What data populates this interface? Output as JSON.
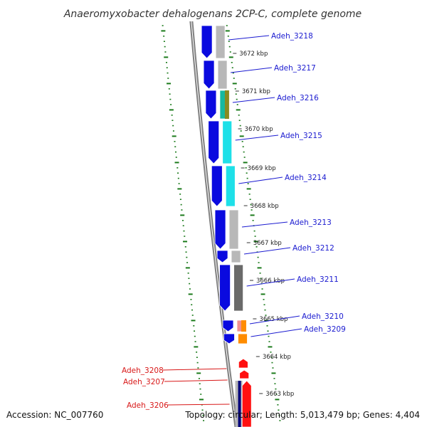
{
  "title": "Anaeromyxobacter dehalogenans 2CP-C, complete genome",
  "footer": {
    "accession": "Accession: NC_007760",
    "summary": "Topology: circular; Length: 5,013,479 bp; Genes: 4,404"
  },
  "colors": {
    "forward_cds": "#0a0adf",
    "reverse_cds": "#ff1010",
    "forward_label": "#1a1ad0",
    "reverse_label": "#d81818",
    "backbone": "#808080",
    "gc_dots": "#1a7a1a",
    "no_cog": "#b8b8b8",
    "cog_cyan": "#1ee0e8",
    "cog_olive": "#8a8a20",
    "cog_teal": "#16b8a0",
    "cog_darkgray": "#6a6a6a",
    "cog_salmon": "#f09090",
    "cog_orange": "#ff8c00",
    "cog_navy": "#00007a"
  },
  "ticks": [
    "3672 kbp",
    "3671 kbp",
    "3670 kbp",
    "3669 kbp",
    "3668 kbp",
    "3667 kbp",
    "3666 kbp",
    "3665 kbp",
    "3664 kbp",
    "3663 kbp"
  ],
  "genes": [
    {
      "name": "Adeh_3218",
      "strand": "+",
      "cog_color": "#b8b8b8"
    },
    {
      "name": "Adeh_3217",
      "strand": "+",
      "cog_color": "#b8b8b8"
    },
    {
      "name": "Adeh_3216",
      "strand": "+",
      "cog_color": "#16b8a0"
    },
    {
      "name": "Adeh_3215",
      "strand": "+",
      "cog_color": "#1ee0e8"
    },
    {
      "name": "Adeh_3214",
      "strand": "+",
      "cog_color": "#1ee0e8"
    },
    {
      "name": "Adeh_3213",
      "strand": "+",
      "cog_color": "#b8b8b8"
    },
    {
      "name": "Adeh_3212",
      "strand": "+",
      "cog_color": "#b8b8b8"
    },
    {
      "name": "Adeh_3211",
      "strand": "+",
      "cog_color": "#6a6a6a"
    },
    {
      "name": "Adeh_3210",
      "strand": "+",
      "cog_color": "#f09090"
    },
    {
      "name": "Adeh_3209",
      "strand": "+",
      "cog_color": "#ff8c00"
    },
    {
      "name": "Adeh_3208",
      "strand": "-",
      "cog_color": "#b8b8b8"
    },
    {
      "name": "Adeh_3207",
      "strand": "-",
      "cog_color": "#b8b8b8"
    },
    {
      "name": "Adeh_3206",
      "strand": "-",
      "cog_color": "#00007a"
    }
  ]
}
